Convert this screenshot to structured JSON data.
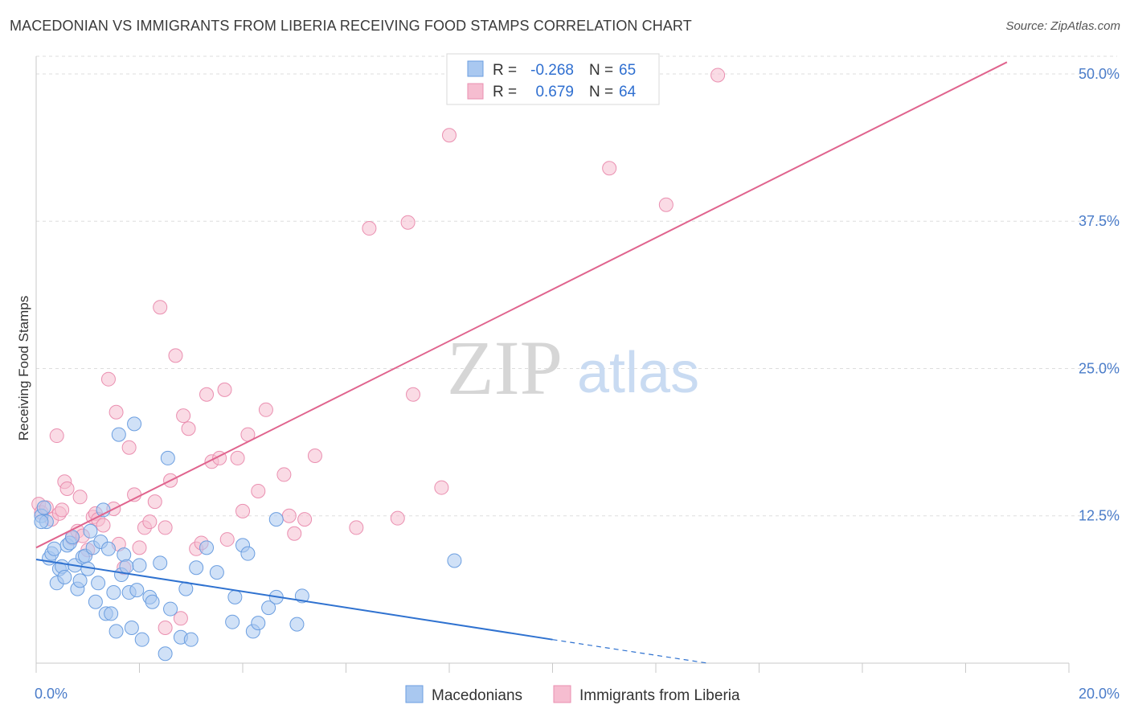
{
  "header": {
    "title": "MACEDONIAN VS IMMIGRANTS FROM LIBERIA RECEIVING FOOD STAMPS CORRELATION CHART",
    "source": "Source: ZipAtlas.com"
  },
  "watermark": {
    "zip": "ZIP",
    "atlas": "atlas"
  },
  "colors": {
    "blue_fill": "#a9c8f0",
    "blue_stroke": "#6b9ee0",
    "blue_line": "#2f72d0",
    "pink_fill": "#f6bdd0",
    "pink_stroke": "#ea8fb0",
    "pink_line": "#e0648e",
    "tick": "#4a7cc9",
    "grid": "#dedede"
  },
  "legend_top": {
    "rows": [
      {
        "r_label": "R =",
        "r_value": "-0.268",
        "n_label": "N =",
        "n_value": "65"
      },
      {
        "r_label": "R =",
        "r_value": "0.679",
        "n_label": "N =",
        "n_value": "64"
      }
    ]
  },
  "chart_data": {
    "type": "scatter",
    "title": "MACEDONIAN VS IMMIGRANTS FROM LIBERIA RECEIVING FOOD STAMPS CORRELATION CHART",
    "xlabel": "",
    "ylabel": "Receiving Food Stamps",
    "xlim": [
      0,
      20
    ],
    "ylim": [
      0,
      51.5
    ],
    "x_tick_labels": [
      "0.0%",
      "20.0%"
    ],
    "y_ticks": [
      12.5,
      25.0,
      37.5,
      50.0
    ],
    "y_tick_labels": [
      "12.5%",
      "25.0%",
      "37.5%",
      "50.0%"
    ],
    "legend_position": "bottom-center",
    "series": [
      {
        "name": "Macedonians",
        "r": -0.268,
        "n": 65,
        "trend": {
          "x0": 0,
          "y0": 8.8,
          "x1": 10,
          "y1": 2.0,
          "dash_to_x": 13.0,
          "dash_to_y": 0.0
        },
        "points": [
          [
            0.1,
            12.5
          ],
          [
            0.15,
            13.2
          ],
          [
            0.2,
            12.0
          ],
          [
            0.25,
            8.9
          ],
          [
            0.3,
            9.3
          ],
          [
            0.35,
            9.7
          ],
          [
            0.4,
            6.8
          ],
          [
            0.45,
            8.0
          ],
          [
            0.5,
            8.2
          ],
          [
            0.55,
            7.3
          ],
          [
            0.6,
            10.0
          ],
          [
            0.65,
            10.2
          ],
          [
            0.7,
            10.7
          ],
          [
            0.75,
            8.3
          ],
          [
            0.8,
            6.3
          ],
          [
            0.85,
            7.0
          ],
          [
            0.9,
            9.0
          ],
          [
            0.95,
            9.1
          ],
          [
            1.0,
            8.0
          ],
          [
            1.05,
            11.2
          ],
          [
            1.1,
            9.8
          ],
          [
            1.15,
            5.2
          ],
          [
            1.2,
            6.8
          ],
          [
            1.25,
            10.3
          ],
          [
            1.3,
            13.0
          ],
          [
            1.35,
            4.2
          ],
          [
            1.4,
            9.7
          ],
          [
            1.45,
            4.2
          ],
          [
            1.5,
            6.0
          ],
          [
            1.55,
            2.7
          ],
          [
            1.6,
            19.4
          ],
          [
            1.65,
            7.5
          ],
          [
            1.7,
            9.2
          ],
          [
            1.75,
            8.2
          ],
          [
            1.8,
            6.0
          ],
          [
            1.85,
            3.0
          ],
          [
            1.9,
            20.3
          ],
          [
            1.95,
            6.2
          ],
          [
            2.0,
            8.3
          ],
          [
            2.05,
            2.0
          ],
          [
            2.2,
            5.6
          ],
          [
            2.25,
            5.2
          ],
          [
            2.4,
            8.5
          ],
          [
            2.5,
            0.8
          ],
          [
            2.55,
            17.4
          ],
          [
            2.6,
            4.6
          ],
          [
            2.8,
            2.2
          ],
          [
            2.9,
            6.3
          ],
          [
            3.0,
            2.0
          ],
          [
            3.1,
            8.1
          ],
          [
            3.3,
            9.8
          ],
          [
            3.5,
            7.7
          ],
          [
            3.8,
            3.5
          ],
          [
            3.85,
            5.6
          ],
          [
            4.0,
            10.0
          ],
          [
            4.1,
            9.3
          ],
          [
            4.2,
            2.7
          ],
          [
            4.3,
            3.4
          ],
          [
            4.5,
            4.7
          ],
          [
            4.65,
            5.6
          ],
          [
            4.65,
            12.2
          ],
          [
            5.05,
            3.3
          ],
          [
            5.15,
            5.7
          ],
          [
            8.1,
            8.7
          ],
          [
            0.1,
            12.0
          ]
        ]
      },
      {
        "name": "Immigrants from Liberia",
        "r": 0.679,
        "n": 64,
        "trend": {
          "x0": 0,
          "y0": 9.8,
          "x1": 18.8,
          "y1": 51.0
        },
        "points": [
          [
            0.05,
            13.5
          ],
          [
            0.1,
            12.8
          ],
          [
            0.2,
            13.2
          ],
          [
            0.3,
            12.2
          ],
          [
            0.4,
            19.3
          ],
          [
            0.45,
            12.7
          ],
          [
            0.5,
            13.0
          ],
          [
            0.55,
            15.4
          ],
          [
            0.6,
            14.8
          ],
          [
            0.7,
            10.6
          ],
          [
            0.8,
            11.2
          ],
          [
            0.85,
            14.1
          ],
          [
            0.9,
            10.8
          ],
          [
            1.0,
            9.6
          ],
          [
            1.1,
            12.4
          ],
          [
            1.15,
            12.7
          ],
          [
            1.2,
            12.2
          ],
          [
            1.3,
            11.7
          ],
          [
            1.4,
            24.1
          ],
          [
            1.5,
            13.1
          ],
          [
            1.55,
            21.3
          ],
          [
            1.6,
            10.1
          ],
          [
            1.7,
            8.1
          ],
          [
            1.8,
            18.3
          ],
          [
            1.9,
            14.3
          ],
          [
            2.0,
            9.8
          ],
          [
            2.1,
            11.5
          ],
          [
            2.2,
            12.0
          ],
          [
            2.3,
            13.7
          ],
          [
            2.4,
            30.2
          ],
          [
            2.5,
            11.5
          ],
          [
            2.6,
            15.5
          ],
          [
            2.7,
            26.1
          ],
          [
            2.8,
            3.8
          ],
          [
            2.85,
            21.0
          ],
          [
            2.95,
            19.9
          ],
          [
            3.1,
            9.7
          ],
          [
            3.2,
            10.2
          ],
          [
            3.3,
            22.8
          ],
          [
            3.4,
            17.1
          ],
          [
            3.55,
            17.4
          ],
          [
            3.65,
            23.2
          ],
          [
            3.7,
            10.5
          ],
          [
            3.9,
            17.4
          ],
          [
            4.0,
            12.9
          ],
          [
            4.1,
            19.4
          ],
          [
            4.3,
            14.6
          ],
          [
            4.45,
            21.5
          ],
          [
            4.8,
            16.0
          ],
          [
            4.9,
            12.5
          ],
          [
            5.0,
            11.0
          ],
          [
            5.2,
            12.2
          ],
          [
            5.4,
            17.6
          ],
          [
            6.2,
            11.5
          ],
          [
            6.45,
            36.9
          ],
          [
            7.0,
            12.3
          ],
          [
            7.2,
            37.4
          ],
          [
            7.3,
            22.8
          ],
          [
            7.85,
            14.9
          ],
          [
            8.0,
            44.8
          ],
          [
            11.1,
            42.0
          ],
          [
            12.2,
            38.9
          ],
          [
            13.2,
            49.9
          ],
          [
            2.5,
            3.0
          ]
        ]
      }
    ]
  }
}
